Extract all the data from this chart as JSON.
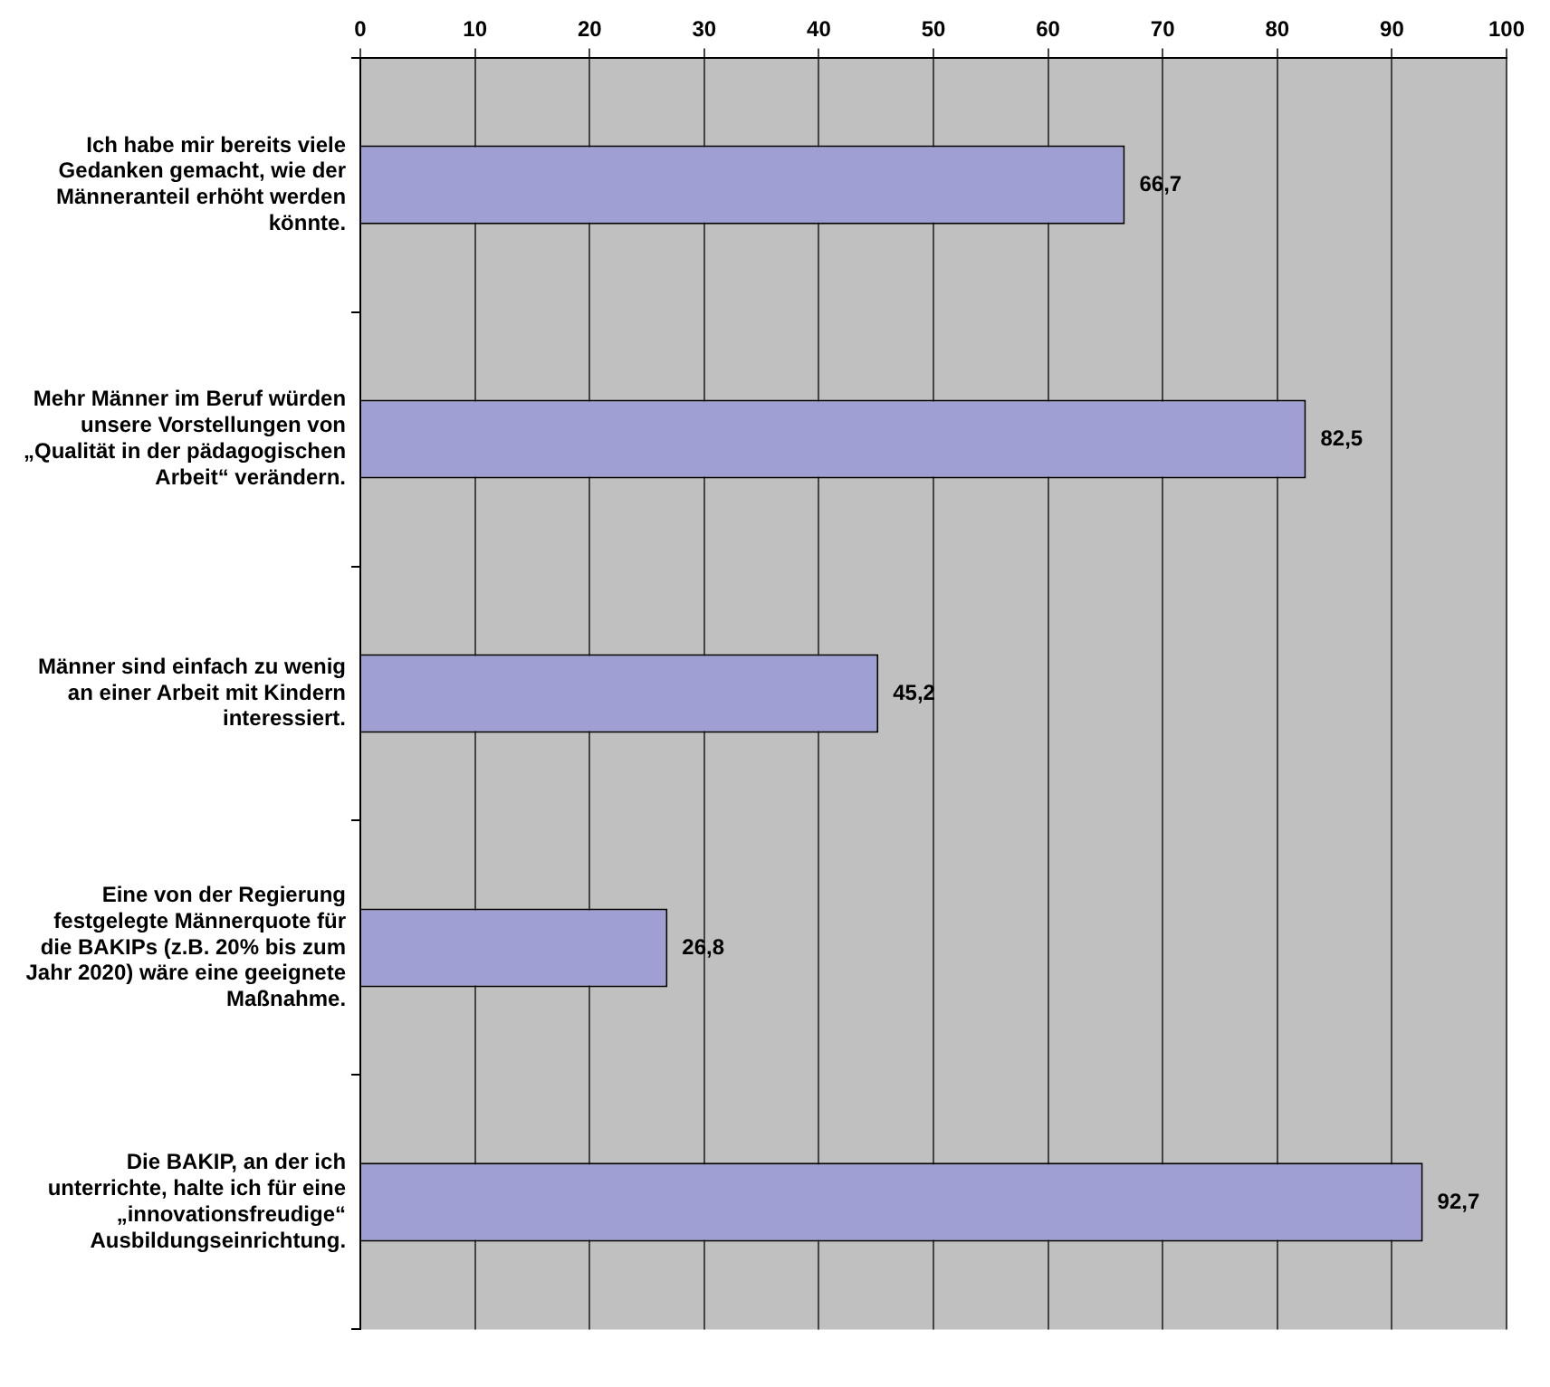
{
  "chart_data": {
    "type": "bar",
    "orientation": "horizontal",
    "categories": [
      "Ich habe mir bereits viele Gedanken gemacht, wie der Männeranteil erhöht werden könnte.",
      "Mehr Männer im Beruf würden unsere Vorstellungen von „Qualität in der pädagogischen Arbeit“ verändern.",
      "Männer sind einfach zu wenig an einer Arbeit mit Kindern interessiert.",
      "Eine von der Regierung festgelegte Männerquote für die BAKIPs (z.B. 20% bis zum Jahr 2020) wäre eine geeignete Maßnahme.",
      "Die BAKIP, an der ich unterrichte, halte ich für eine „innovationsfreudige“ Ausbildungseinrichtung."
    ],
    "values": [
      66.7,
      82.5,
      45.2,
      26.8,
      92.7
    ],
    "value_labels": [
      "66,7",
      "82,5",
      "45,2",
      "26,8",
      "92,7"
    ],
    "color": "#9f9fd3",
    "xlim": [
      0,
      100
    ],
    "xticks": [
      0,
      10,
      20,
      30,
      40,
      50,
      60,
      70,
      80,
      90,
      100
    ],
    "grid": "x",
    "legend": false
  }
}
